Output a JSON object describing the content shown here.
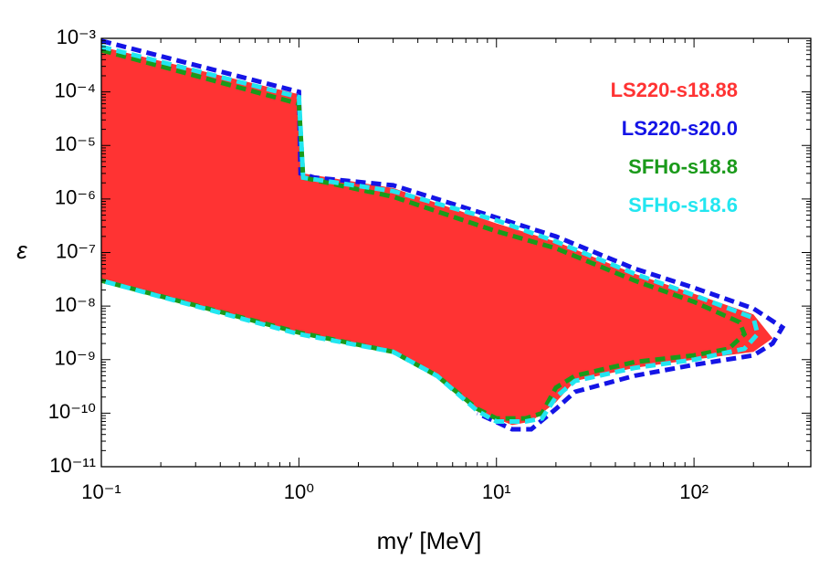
{
  "chart_data": {
    "type": "region",
    "xlabel": "mγ′ [MeV]",
    "ylabel": "ε",
    "xscale": "log",
    "yscale": "log",
    "xlim": [
      0.1,
      390
    ],
    "ylim": [
      1e-11,
      0.001
    ],
    "xticks": [
      {
        "value": 0.1,
        "label": "10⁻¹"
      },
      {
        "value": 1,
        "label": "10⁰"
      },
      {
        "value": 10,
        "label": "10¹"
      },
      {
        "value": 100,
        "label": "10²"
      }
    ],
    "yticks": [
      {
        "value": 1e-11,
        "label": "10⁻¹¹"
      },
      {
        "value": 1e-10,
        "label": "10⁻¹⁰"
      },
      {
        "value": 1e-09,
        "label": "10⁻⁹"
      },
      {
        "value": 1e-08,
        "label": "10⁻⁸"
      },
      {
        "value": 1e-07,
        "label": "10⁻⁷"
      },
      {
        "value": 1e-06,
        "label": "10⁻⁶"
      },
      {
        "value": 1e-05,
        "label": "10⁻⁵"
      },
      {
        "value": 0.0001,
        "label": "10⁻⁴"
      },
      {
        "value": 0.001,
        "label": "10⁻³"
      }
    ],
    "legend": "upper right",
    "series": [
      {
        "name": "LS220-s18.88",
        "color": "#ff3333",
        "filled": true,
        "x": [
          0.1,
          1,
          1.05,
          3,
          10,
          20,
          50,
          100,
          200,
          250,
          200,
          100,
          50,
          25,
          20,
          15,
          12,
          8,
          5,
          3,
          1,
          0.1
        ],
        "values": [
          0.0007,
          9e-05,
          3e-06,
          1.6e-06,
          3.5e-07,
          1.6e-07,
          4e-08,
          1.7e-08,
          7e-09,
          2.5e-09,
          1.4e-09,
          1e-09,
          7e-10,
          4e-10,
          1.6e-10,
          7e-11,
          6e-11,
          1.1e-10,
          5e-10,
          1.4e-09,
          3e-09,
          3e-08
        ]
      },
      {
        "name": "LS220-s20.0",
        "color": "#1414e6",
        "dashed": true,
        "x": [
          0.1,
          1,
          1.02,
          1.2,
          3,
          10,
          20,
          50,
          100,
          200,
          280,
          250,
          200,
          100,
          50,
          25,
          20,
          15,
          12,
          8
        ],
        "values": [
          0.0009,
          0.0001,
          3e-06,
          2.5e-06,
          1.8e-06,
          4.5e-07,
          2e-07,
          5e-08,
          2.2e-08,
          9e-09,
          4e-09,
          2e-09,
          1.2e-09,
          8e-10,
          5e-10,
          2.5e-10,
          1.2e-10,
          5e-11,
          5e-11,
          1e-10
        ]
      },
      {
        "name": "SFHo-s18.8",
        "color": "#1a9a1a",
        "dashed": true,
        "x": [
          0.1,
          1,
          1.05,
          3,
          10,
          20,
          50,
          100,
          170,
          180,
          150,
          100,
          50,
          25,
          20,
          17,
          14,
          10,
          8,
          5,
          3,
          1,
          0.1
        ],
        "values": [
          0.0006,
          6e-05,
          2.5e-06,
          1.1e-06,
          2.5e-07,
          1.2e-07,
          3e-08,
          1.2e-08,
          5e-09,
          3e-09,
          1.6e-09,
          1.2e-09,
          9e-10,
          5e-10,
          3e-10,
          1e-10,
          8e-11,
          8e-11,
          1.2e-10,
          5e-10,
          1.4e-09,
          3.2e-09,
          3e-08
        ]
      },
      {
        "name": "SFHo-s18.6",
        "color": "#22e6f0",
        "dashed": true,
        "x": [
          0.1,
          1,
          1.05,
          3,
          10,
          20,
          50,
          100,
          200,
          210,
          180,
          100,
          50,
          25,
          20,
          17,
          14,
          10,
          8,
          5,
          3,
          1,
          0.1
        ],
        "values": [
          0.0007,
          8e-05,
          2.5e-06,
          1.4e-06,
          4e-07,
          1.6e-07,
          4e-08,
          1.6e-08,
          6e-09,
          3e-09,
          1.6e-09,
          1e-09,
          7e-10,
          4e-10,
          2e-10,
          8e-11,
          7e-11,
          7e-11,
          1.1e-10,
          5e-10,
          1.4e-09,
          3e-09,
          3e-08
        ]
      }
    ]
  }
}
